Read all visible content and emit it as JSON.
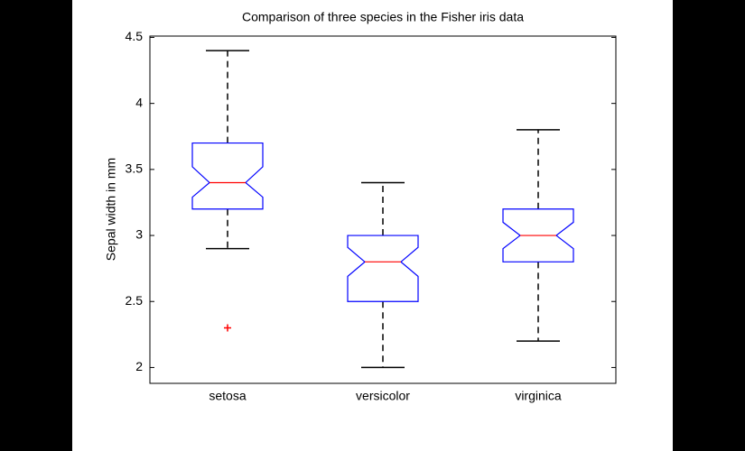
{
  "chart_data": {
    "type": "boxplot",
    "title": "Comparison of three species in the Fisher iris data",
    "ylabel": "Sepal width in mm",
    "categories": [
      "setosa",
      "versicolor",
      "virginica"
    ],
    "boxes": [
      {
        "whislo": 2.9,
        "q1": 3.2,
        "notch_lo": 3.29,
        "median": 3.4,
        "notch_hi": 3.52,
        "q3": 3.7,
        "whishi": 4.4,
        "outliers": [
          2.3
        ]
      },
      {
        "whislo": 2.0,
        "q1": 2.5,
        "notch_lo": 2.69,
        "median": 2.8,
        "notch_hi": 2.91,
        "q3": 3.0,
        "whishi": 3.4,
        "outliers": []
      },
      {
        "whislo": 2.2,
        "q1": 2.8,
        "notch_lo": 2.9,
        "median": 3.0,
        "notch_hi": 3.1,
        "q3": 3.2,
        "whishi": 3.8,
        "outliers": []
      }
    ],
    "box_color": "#0000ff",
    "median_color": "#ff0000",
    "whisker_color": "#000000",
    "outlier_color": "#ff0000",
    "ylim": [
      1.88,
      4.51
    ],
    "yticks": [
      2,
      2.5,
      3,
      3.5,
      4,
      4.5
    ],
    "grid": false
  }
}
